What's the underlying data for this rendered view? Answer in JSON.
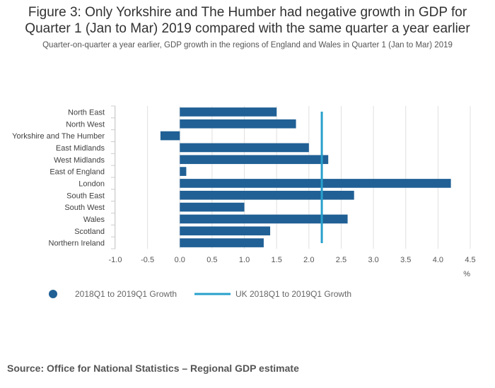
{
  "title_line1": "Figure 3: Only Yorkshire and The Humber had negative growth in GDP for",
  "title_line2": "Quarter 1 (Jan to Mar) 2019 compared with the same quarter a year earlier",
  "subtitle": "Quarter-on-quarter a year earlier, GDP growth in the regions of England and Wales in Quarter 1 (Jan to Mar) 2019",
  "source": "Source: Office for National Statistics – Regional GDP estimate",
  "colors": {
    "bar": "#206095",
    "reference": "#27a0cc",
    "grid": "#e0e0e0",
    "tick": "#cccccc"
  },
  "chart_data": {
    "type": "bar",
    "orientation": "horizontal",
    "categories": [
      "North East",
      "North West",
      "Yorkshire and The Humber",
      "East Midlands",
      "West Midlands",
      "East of England",
      "London",
      "South East",
      "South West",
      "Wales",
      "Scotland",
      "Northern Ireland"
    ],
    "series": [
      {
        "name": "2018Q1 to 2019Q1 Growth",
        "values": [
          1.5,
          1.8,
          -0.3,
          2.0,
          2.3,
          0.1,
          4.2,
          2.7,
          1.0,
          2.6,
          1.4,
          1.3
        ]
      }
    ],
    "reference_line": {
      "name": "UK 2018Q1 to 2019Q1 Growth",
      "value": 2.2
    },
    "xlim": [
      -1.0,
      4.5
    ],
    "xticks": [
      "-1.0",
      "-0.5",
      "0.0",
      "0.5",
      "1.0",
      "1.5",
      "2.0",
      "2.5",
      "3.0",
      "3.5",
      "4.0",
      "4.5"
    ],
    "xtick_values": [
      -1.0,
      -0.5,
      0.0,
      0.5,
      1.0,
      1.5,
      2.0,
      2.5,
      3.0,
      3.5,
      4.0,
      4.5
    ],
    "xlabel": "%",
    "grid": true,
    "legend_position": "bottom-left"
  }
}
